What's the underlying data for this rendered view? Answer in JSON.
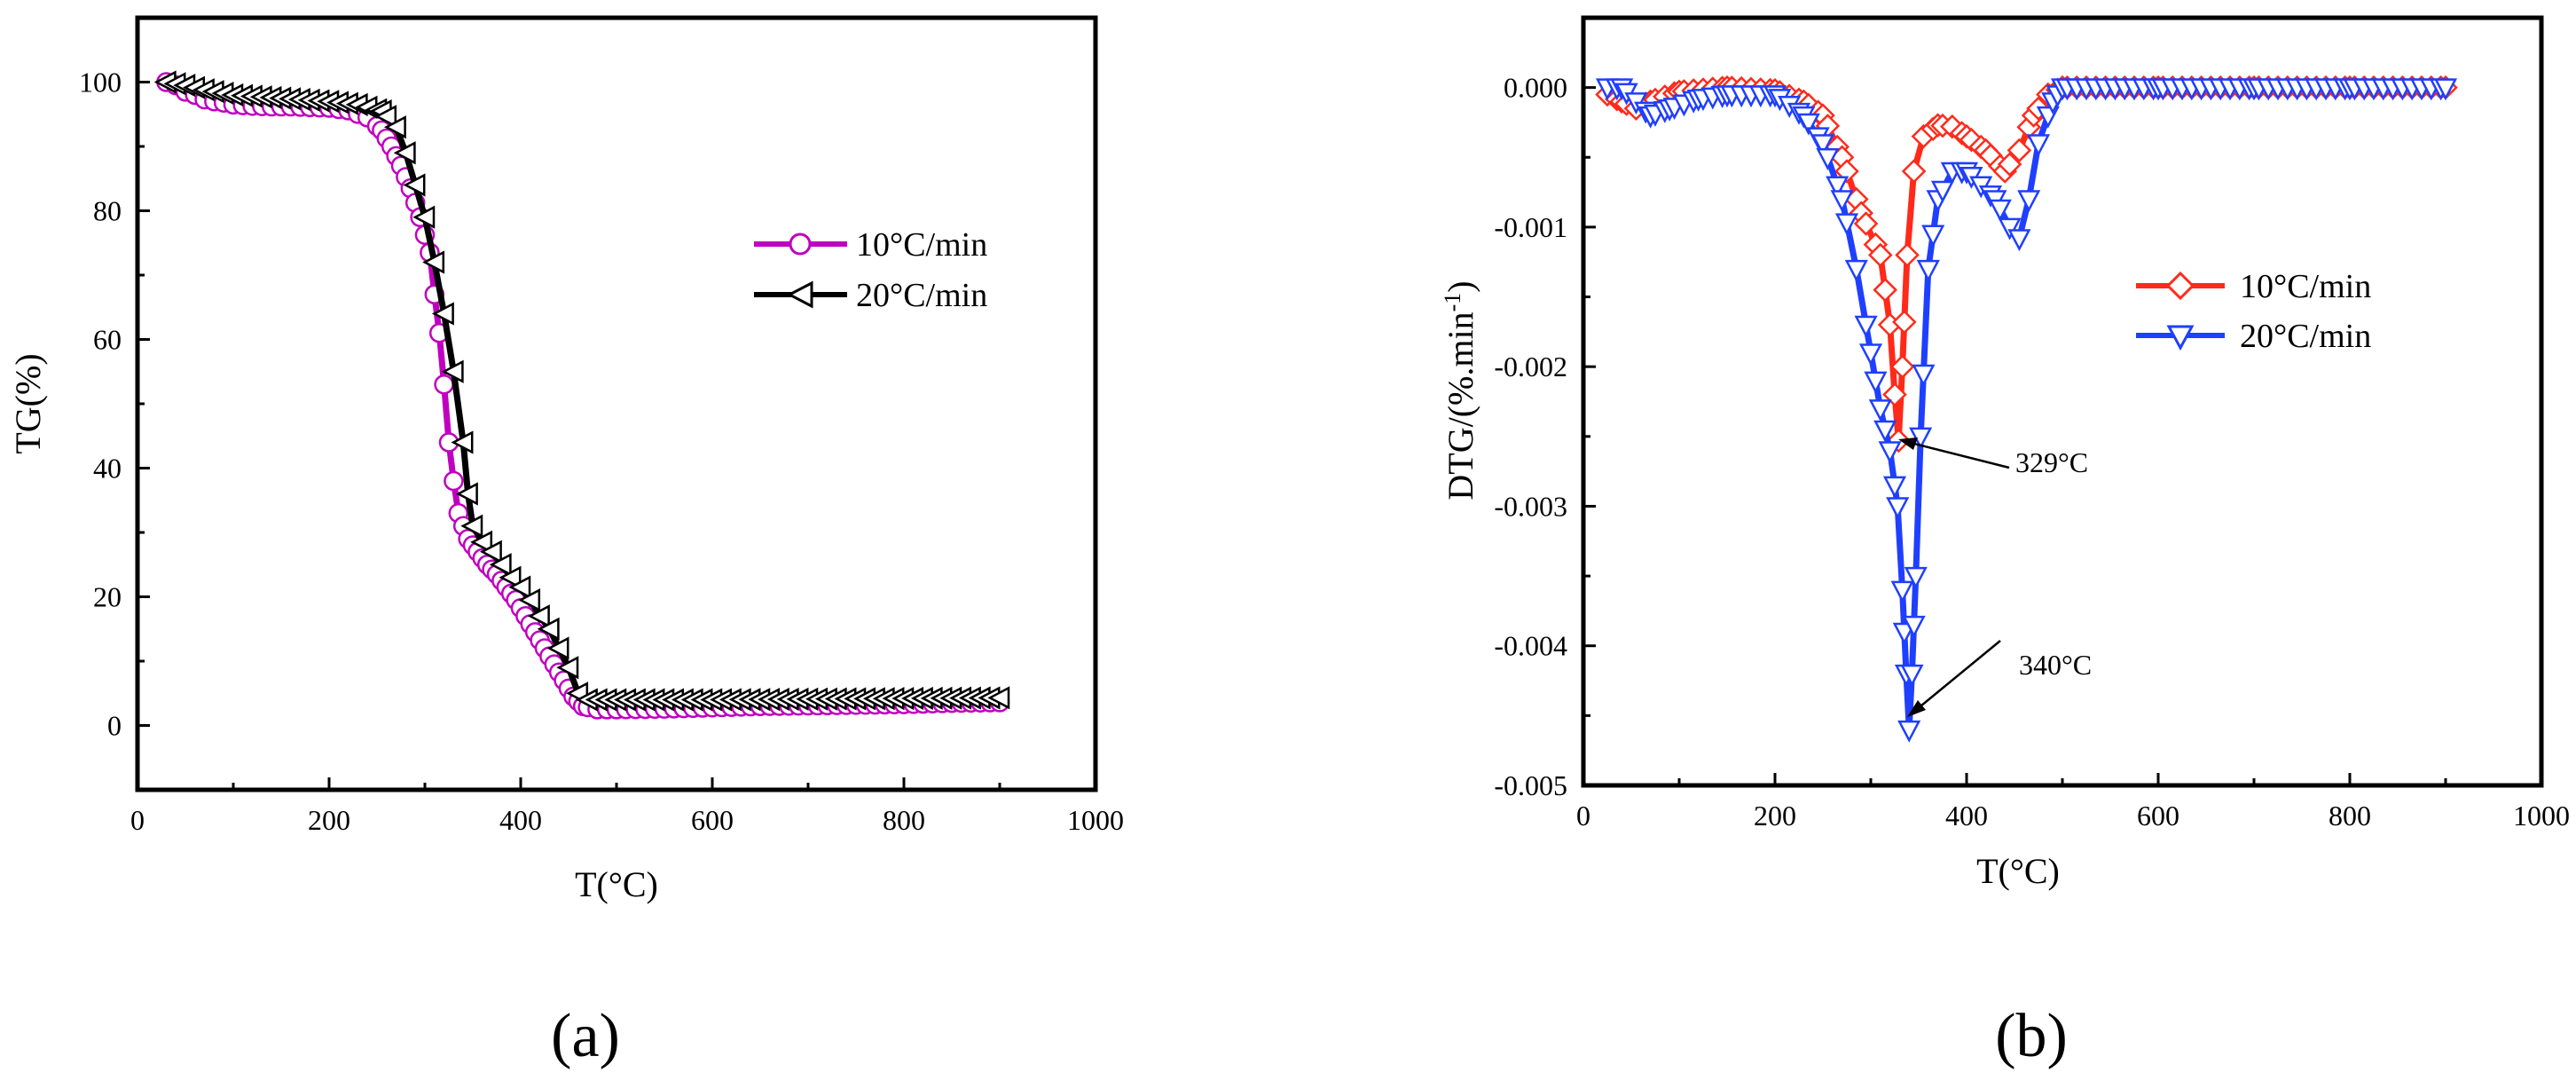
{
  "chart_data": [
    {
      "type": "line",
      "panel_label": "(a)",
      "xlabel": "T(°C)",
      "ylabel": "TG(%)",
      "xlim": [
        0,
        1000
      ],
      "ylim": [
        -10,
        110
      ],
      "xticks": [
        0,
        200,
        400,
        600,
        800,
        1000
      ],
      "yticks": [
        0,
        20,
        40,
        60,
        80,
        100
      ],
      "legend_position": "center-right",
      "series": [
        {
          "name": "10°C/min",
          "color": "#c000c0",
          "marker": "circle",
          "points": [
            [
              30,
              100
            ],
            [
              40,
              99.5
            ],
            [
              50,
              98.5
            ],
            [
              60,
              98
            ],
            [
              70,
              97.3
            ],
            [
              80,
              97
            ],
            [
              90,
              96.8
            ],
            [
              100,
              96.5
            ],
            [
              120,
              96.3
            ],
            [
              140,
              96.2
            ],
            [
              160,
              96.2
            ],
            [
              180,
              96.1
            ],
            [
              200,
              96
            ],
            [
              220,
              95.6
            ],
            [
              240,
              94.5
            ],
            [
              255,
              92.5
            ],
            [
              265,
              90
            ],
            [
              275,
              87
            ],
            [
              285,
              83.5
            ],
            [
              295,
              79
            ],
            [
              305,
              73.5
            ],
            [
              310,
              67
            ],
            [
              315,
              61
            ],
            [
              320,
              53
            ],
            [
              325,
              44
            ],
            [
              330,
              38
            ],
            [
              335,
              33
            ],
            [
              345,
              29
            ],
            [
              355,
              27
            ],
            [
              365,
              25
            ],
            [
              375,
              23.5
            ],
            [
              385,
              21.5
            ],
            [
              395,
              19.5
            ],
            [
              405,
              17
            ],
            [
              415,
              14.5
            ],
            [
              425,
              12
            ],
            [
              435,
              9.5
            ],
            [
              445,
              7
            ],
            [
              455,
              4.5
            ],
            [
              465,
              3
            ],
            [
              480,
              2.5
            ],
            [
              500,
              2.5
            ],
            [
              550,
              2.6
            ],
            [
              600,
              2.8
            ],
            [
              650,
              3
            ],
            [
              700,
              3.1
            ],
            [
              750,
              3.2
            ],
            [
              800,
              3.3
            ],
            [
              850,
              3.5
            ],
            [
              900,
              3.6
            ]
          ]
        },
        {
          "name": "20°C/min",
          "color": "#000000",
          "marker": "triangle-left",
          "points": [
            [
              30,
              100
            ],
            [
              50,
              99.5
            ],
            [
              70,
              98.8
            ],
            [
              100,
              98
            ],
            [
              150,
              97.5
            ],
            [
              200,
              97
            ],
            [
              230,
              96.5
            ],
            [
              255,
              95.5
            ],
            [
              270,
              93
            ],
            [
              280,
              89
            ],
            [
              290,
              84
            ],
            [
              300,
              79
            ],
            [
              310,
              72
            ],
            [
              320,
              64
            ],
            [
              330,
              55
            ],
            [
              340,
              44
            ],
            [
              345,
              36
            ],
            [
              350,
              31
            ],
            [
              360,
              28.5
            ],
            [
              370,
              27
            ],
            [
              380,
              25
            ],
            [
              390,
              23
            ],
            [
              400,
              21.5
            ],
            [
              410,
              19.5
            ],
            [
              420,
              17
            ],
            [
              430,
              15
            ],
            [
              440,
              12
            ],
            [
              450,
              9
            ],
            [
              460,
              5
            ],
            [
              470,
              4
            ],
            [
              500,
              4
            ],
            [
              600,
              4
            ],
            [
              700,
              4.1
            ],
            [
              800,
              4.2
            ],
            [
              900,
              4.3
            ]
          ]
        }
      ]
    },
    {
      "type": "line",
      "panel_label": "(b)",
      "xlabel": "T(°C)",
      "ylabel_main": "DTG/(%.min",
      "ylabel_sup": "-1",
      "ylabel_close": ")",
      "xlim": [
        0,
        1000
      ],
      "ylim": [
        -0.005,
        0.0005
      ],
      "xticks": [
        0,
        200,
        400,
        600,
        800,
        1000
      ],
      "yticks": [
        0,
        -0.001,
        -0.002,
        -0.003,
        -0.004,
        -0.005
      ],
      "ytick_labels": [
        "0.000",
        "-0.001",
        "-0.002",
        "-0.003",
        "-0.004",
        "-0.005"
      ],
      "legend_position": "center-right",
      "annotations": [
        {
          "text": "329°C",
          "x": 329,
          "y": -0.00253
        },
        {
          "text": "340°C",
          "x": 340,
          "y": -0.0046
        }
      ],
      "series": [
        {
          "name": "10°C/min",
          "color": "#ff2a1a",
          "marker": "diamond",
          "points": [
            [
              25,
              -5e-05
            ],
            [
              40,
              -0.0001
            ],
            [
              55,
              -0.00015
            ],
            [
              70,
              -0.0001
            ],
            [
              100,
              -3e-05
            ],
            [
              150,
              0.0
            ],
            [
              200,
              -2e-05
            ],
            [
              230,
              -0.0001
            ],
            [
              250,
              -0.0002
            ],
            [
              270,
              -0.0005
            ],
            [
              290,
              -0.0009
            ],
            [
              310,
              -0.0012
            ],
            [
              320,
              -0.0017
            ],
            [
              325,
              -0.0022
            ],
            [
              329,
              -0.00253
            ],
            [
              333,
              -0.002
            ],
            [
              338,
              -0.0012
            ],
            [
              345,
              -0.0006
            ],
            [
              355,
              -0.00035
            ],
            [
              370,
              -0.00027
            ],
            [
              385,
              -0.00028
            ],
            [
              400,
              -0.00035
            ],
            [
              420,
              -0.00045
            ],
            [
              440,
              -0.0006
            ],
            [
              455,
              -0.00045
            ],
            [
              470,
              -0.0002
            ],
            [
              485,
              -5e-05
            ],
            [
              500,
              0.0
            ],
            [
              600,
              0.0
            ],
            [
              700,
              0.0
            ],
            [
              800,
              0.0
            ],
            [
              900,
              0.0
            ]
          ]
        },
        {
          "name": "20°C/min",
          "color": "#1f3fff",
          "marker": "triangle-down",
          "points": [
            [
              25,
              0.0
            ],
            [
              40,
              0.0
            ],
            [
              55,
              -0.0001
            ],
            [
              70,
              -0.0002
            ],
            [
              90,
              -0.00015
            ],
            [
              120,
              -8e-05
            ],
            [
              150,
              -5e-05
            ],
            [
              200,
              -5e-05
            ],
            [
              230,
              -0.0002
            ],
            [
              250,
              -0.0004
            ],
            [
              270,
              -0.0008
            ],
            [
              285,
              -0.0013
            ],
            [
              300,
              -0.0019
            ],
            [
              310,
              -0.0023
            ],
            [
              320,
              -0.0026
            ],
            [
              328,
              -0.003
            ],
            [
              333,
              -0.0036
            ],
            [
              337,
              -0.0042
            ],
            [
              340,
              -0.0046
            ],
            [
              343,
              -0.0042
            ],
            [
              347,
              -0.0035
            ],
            [
              352,
              -0.0025
            ],
            [
              360,
              -0.0013
            ],
            [
              370,
              -0.0008
            ],
            [
              385,
              -0.0006
            ],
            [
              400,
              -0.0006
            ],
            [
              415,
              -0.0007
            ],
            [
              430,
              -0.0008
            ],
            [
              445,
              -0.001
            ],
            [
              455,
              -0.00108
            ],
            [
              465,
              -0.0008
            ],
            [
              475,
              -0.0004
            ],
            [
              490,
              -0.0001
            ],
            [
              500,
              0.0
            ],
            [
              600,
              0.0
            ],
            [
              700,
              0.0
            ],
            [
              800,
              0.0
            ],
            [
              900,
              0.0
            ]
          ]
        }
      ]
    }
  ]
}
